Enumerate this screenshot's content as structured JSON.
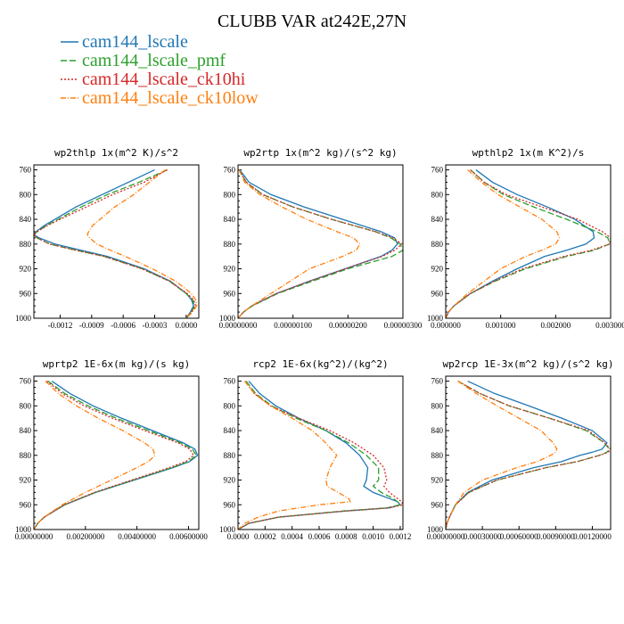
{
  "figure_title": "CLUBB VAR at242E,27N",
  "legend": [
    {
      "label": "cam144_lscale",
      "color": "#1f77b4",
      "dash": "solid"
    },
    {
      "label": "cam144_lscale_pmf",
      "color": "#2ca02c",
      "dash": "longdash"
    },
    {
      "label": "cam144_lscale_ck10hi",
      "color": "#d62728",
      "dash": "dot"
    },
    {
      "label": "cam144_lscale_ck10low",
      "color": "#ff7f0e",
      "dash": "dashdot"
    }
  ],
  "chart_data": [
    {
      "type": "line",
      "title": "wp2thlp  1x(m^2 K)/s^2",
      "xlim": [
        -0.00145,
        0.00012
      ],
      "xticks": [
        "-0.0012",
        "-0.0009",
        "-0.0006",
        "-0.0003",
        "0.0000"
      ],
      "xtick_values": [
        -0.0012,
        -0.0009,
        -0.0006,
        -0.0003,
        0.0
      ],
      "ylim": [
        1000,
        752
      ],
      "yticks": [
        "760",
        "800",
        "840",
        "880",
        "920",
        "960",
        "1000"
      ],
      "y": [
        760,
        780,
        800,
        820,
        840,
        850,
        860,
        865,
        870,
        880,
        890,
        900,
        920,
        940,
        960,
        970,
        980,
        990,
        1000
      ],
      "series": [
        {
          "name": "cam144_lscale",
          "x": [
            -0.0003,
            -0.00055,
            -0.0008,
            -0.00105,
            -0.00125,
            -0.00135,
            -0.00143,
            -0.00145,
            -0.0014,
            -0.00125,
            -0.001,
            -0.00075,
            -0.0004,
            -0.00015,
            0.0,
            5e-05,
            7e-05,
            4e-05,
            0.0
          ]
        },
        {
          "name": "cam144_lscale_pmf",
          "x": [
            -0.00018,
            -0.00045,
            -0.00075,
            -0.001,
            -0.00122,
            -0.00133,
            -0.00142,
            -0.00145,
            -0.00142,
            -0.0013,
            -0.00105,
            -0.00078,
            -0.00042,
            -0.00016,
            0.0,
            6e-05,
            8e-05,
            5e-05,
            0.0
          ]
        },
        {
          "name": "cam144_lscale_ck10hi",
          "x": [
            -0.00018,
            -0.0004,
            -0.0007,
            -0.00095,
            -0.0012,
            -0.00132,
            -0.00142,
            -0.00145,
            -0.00142,
            -0.0013,
            -0.00105,
            -0.00078,
            -0.00042,
            -0.00016,
            1e-05,
            7e-05,
            9e-05,
            5e-05,
            0.0
          ]
        },
        {
          "name": "cam144_lscale_ck10low",
          "x": [
            -0.0002,
            -0.00035,
            -0.0005,
            -0.00068,
            -0.00082,
            -0.00089,
            -0.00093,
            -0.00094,
            -0.00092,
            -0.00085,
            -0.00072,
            -0.00058,
            -0.00032,
            -0.0001,
            5e-05,
            9e-05,
            0.0001,
            6e-05,
            0.0
          ]
        }
      ]
    },
    {
      "type": "line",
      "title": "wp2rtp  1x(m^2 kg)/(s^2 kg)",
      "xlim": [
        0,
        3e-06
      ],
      "xticks": [
        "0.00000000",
        "0.00000100",
        "0.00000200",
        "0.00000300"
      ],
      "xtick_values": [
        0,
        1e-06,
        2e-06,
        3e-06
      ],
      "ylim": [
        1000,
        752
      ],
      "yticks": [
        "760",
        "800",
        "840",
        "880",
        "920",
        "960",
        "1000"
      ],
      "y": [
        760,
        780,
        800,
        820,
        840,
        860,
        870,
        880,
        890,
        900,
        920,
        940,
        960,
        980,
        990,
        1000
      ],
      "series": [
        {
          "name": "cam144_lscale",
          "x": [
            3e-08,
            2e-07,
            6e-07,
            1.2e-06,
            1.9e-06,
            2.6e-06,
            2.85e-06,
            2.9e-06,
            2.8e-06,
            2.6e-06,
            1.95e-06,
            1.3e-06,
            7e-07,
            2.5e-07,
            1e-07,
            0.0
          ]
        },
        {
          "name": "cam144_lscale_pmf",
          "x": [
            2e-08,
            1.5e-07,
            4.5e-07,
            1e-06,
            1.7e-06,
            2.5e-06,
            2.78e-06,
            2.95e-06,
            3e-06,
            2.8e-06,
            2e-06,
            1.35e-06,
            7.2e-07,
            2.6e-07,
            1e-07,
            0.0
          ]
        },
        {
          "name": "cam144_lscale_ck10hi",
          "x": [
            2e-08,
            1.5e-07,
            4.5e-07,
            1e-06,
            1.7e-06,
            2.5e-06,
            2.82e-06,
            2.98e-06,
            2.85e-06,
            2.62e-06,
            1.95e-06,
            1.3e-06,
            7e-07,
            2.5e-07,
            1e-07,
            0.0
          ]
        },
        {
          "name": "cam144_lscale_ck10low",
          "x": [
            2e-08,
            1.2e-07,
            4e-07,
            8e-07,
            1.25e-06,
            1.8e-06,
            2.1e-06,
            2.22e-06,
            2.15e-06,
            1.9e-06,
            1.3e-06,
            9.5e-07,
            6e-07,
            2.5e-07,
            1e-07,
            0.0
          ]
        }
      ]
    },
    {
      "type": "line",
      "title": "wpthlp2  1x(m K^2)/s",
      "xlim": [
        0,
        0.003
      ],
      "xticks": [
        "0.000000",
        "0.001000",
        "0.002000",
        "0.003000"
      ],
      "xtick_values": [
        0,
        0.001,
        0.002,
        0.003
      ],
      "ylim": [
        1000,
        752
      ],
      "yticks": [
        "760",
        "800",
        "840",
        "880",
        "920",
        "960",
        "1000"
      ],
      "y": [
        760,
        780,
        800,
        820,
        840,
        860,
        870,
        880,
        890,
        900,
        920,
        940,
        960,
        980,
        990,
        1000
      ],
      "series": [
        {
          "name": "cam144_lscale",
          "x": [
            0.00055,
            0.00085,
            0.0013,
            0.00185,
            0.00235,
            0.00268,
            0.0027,
            0.00255,
            0.0022,
            0.0018,
            0.0013,
            0.00085,
            0.00045,
            0.00015,
            5e-05,
            0.0
          ]
        },
        {
          "name": "cam144_lscale_pmf",
          "x": [
            0.00045,
            0.0007,
            0.00105,
            0.0016,
            0.0022,
            0.00275,
            0.00295,
            0.00298,
            0.0027,
            0.0022,
            0.00145,
            0.0009,
            0.00045,
            0.00015,
            5e-05,
            0.0
          ]
        },
        {
          "name": "cam144_lscale_ck10hi",
          "x": [
            0.00045,
            0.0007,
            0.0011,
            0.00175,
            0.0024,
            0.00285,
            0.003,
            0.00298,
            0.00265,
            0.00215,
            0.0014,
            0.00088,
            0.00045,
            0.00015,
            5e-05,
            0.0
          ]
        },
        {
          "name": "cam144_lscale_ck10low",
          "x": [
            0.0004,
            0.00065,
            0.00095,
            0.00135,
            0.00175,
            0.00202,
            0.00207,
            0.002,
            0.00175,
            0.00145,
            0.001,
            0.0007,
            0.0004,
            0.00015,
            5e-05,
            0.0
          ]
        }
      ]
    },
    {
      "type": "line",
      "title": "wprtp2  1E-6x(m kg)/(s kg)",
      "xlim": [
        0,
        0.0064
      ],
      "xticks": [
        "0.00000000",
        "0.00200000",
        "0.00400000",
        "0.00600000"
      ],
      "xtick_values": [
        0,
        0.002,
        0.004,
        0.006
      ],
      "ylim": [
        1000,
        752
      ],
      "yticks": [
        "760",
        "800",
        "840",
        "880",
        "920",
        "960",
        "1000"
      ],
      "y": [
        760,
        780,
        800,
        820,
        840,
        860,
        870,
        880,
        890,
        900,
        920,
        940,
        960,
        980,
        990,
        1000
      ],
      "series": [
        {
          "name": "cam144_lscale",
          "x": [
            0.0007,
            0.0014,
            0.0023,
            0.0034,
            0.0046,
            0.0058,
            0.00625,
            0.00635,
            0.00605,
            0.0054,
            0.0039,
            0.0024,
            0.0012,
            0.0004,
            0.00015,
            0.0
          ]
        },
        {
          "name": "cam144_lscale_pmf",
          "x": [
            0.00055,
            0.0012,
            0.0021,
            0.0032,
            0.00445,
            0.0057,
            0.00615,
            0.0063,
            0.006,
            0.00535,
            0.00385,
            0.00238,
            0.00118,
            0.0004,
            0.00015,
            0.0
          ]
        },
        {
          "name": "cam144_lscale_ck10hi",
          "x": [
            0.0005,
            0.0011,
            0.00195,
            0.00305,
            0.0043,
            0.0056,
            0.00605,
            0.0062,
            0.0059,
            0.00525,
            0.0038,
            0.00235,
            0.00118,
            0.0004,
            0.00015,
            0.0
          ]
        },
        {
          "name": "cam144_lscale_ck10low",
          "x": [
            0.00045,
            0.00095,
            0.00165,
            0.0025,
            0.00345,
            0.0043,
            0.00462,
            0.0047,
            0.00445,
            0.004,
            0.003,
            0.002,
            0.0011,
            0.0004,
            0.00015,
            0.0
          ]
        }
      ]
    },
    {
      "type": "line",
      "title": "rcp2  1E-6x(kg^2)/(kg^2)",
      "xlim": [
        0,
        0.00122
      ],
      "xticks": [
        "0.0000",
        "0.0002",
        "0.0004",
        "0.0006",
        "0.0008",
        "0.0010",
        "0.0012"
      ],
      "xtick_values": [
        0,
        0.0002,
        0.0004,
        0.0006,
        0.0008,
        0.001,
        0.0012
      ],
      "ylim": [
        1000,
        752
      ],
      "yticks": [
        "760",
        "800",
        "840",
        "880",
        "920",
        "960",
        "1000"
      ],
      "y": [
        760,
        780,
        800,
        820,
        840,
        860,
        880,
        900,
        920,
        930,
        940,
        950,
        955,
        960,
        965,
        970,
        980,
        990,
        1000
      ],
      "series": [
        {
          "name": "cam144_lscale",
          "x": [
            8e-05,
            0.00016,
            0.00028,
            0.00045,
            0.00065,
            0.0008,
            0.0009,
            0.00096,
            0.00095,
            0.00093,
            0.001,
            0.00112,
            0.00118,
            0.0012,
            0.00112,
            0.0008,
            0.0003,
            8e-05,
            0.0
          ]
        },
        {
          "name": "cam144_lscale_pmf",
          "x": [
            6e-05,
            0.00013,
            0.00025,
            0.00043,
            0.00065,
            0.00082,
            0.00095,
            0.00104,
            0.00104,
            0.001,
            0.00106,
            0.00115,
            0.00118,
            0.0012,
            0.0011,
            0.00078,
            0.0003,
            8e-05,
            0.0
          ]
        },
        {
          "name": "cam144_lscale_ck10hi",
          "x": [
            5e-05,
            0.00012,
            0.00024,
            0.00045,
            0.00068,
            0.00086,
            0.001,
            0.00108,
            0.0011,
            0.00108,
            0.00112,
            0.00118,
            0.00121,
            0.00122,
            0.00112,
            0.0008,
            0.0003,
            8e-05,
            0.0
          ]
        },
        {
          "name": "cam144_lscale_ck10low",
          "x": [
            5e-05,
            0.00012,
            0.00024,
            0.0004,
            0.00055,
            0.00065,
            0.00073,
            0.00068,
            0.00065,
            0.00066,
            0.00074,
            0.00082,
            0.00083,
            0.0006,
            0.00045,
            0.0003,
            0.00015,
            5e-05,
            0.0
          ]
        }
      ]
    },
    {
      "type": "line",
      "title": "wp2rcp  1E-3x(m^2 kg)/(s^2 kg)",
      "xlim": [
        0,
        0.00135
      ],
      "xticks": [
        "0.00000000",
        "0.00030000",
        "0.00060000",
        "0.00090000",
        "0.00120000"
      ],
      "xtick_values": [
        0,
        0.0003,
        0.0006,
        0.0009,
        0.0012
      ],
      "ylim": [
        1000,
        752
      ],
      "yticks": [
        "760",
        "800",
        "840",
        "880",
        "920",
        "960",
        "1000"
      ],
      "y": [
        760,
        780,
        800,
        820,
        840,
        860,
        870,
        875,
        880,
        890,
        900,
        920,
        940,
        960,
        980,
        990,
        1000
      ],
      "series": [
        {
          "name": "cam144_lscale",
          "x": [
            0.00018,
            0.0004,
            0.00068,
            0.00095,
            0.0012,
            0.00132,
            0.00128,
            0.0012,
            0.0011,
            0.00095,
            0.00072,
            0.00038,
            0.00018,
            8e-05,
            3e-05,
            1e-05,
            0.0
          ]
        },
        {
          "name": "cam144_lscale_pmf",
          "x": [
            0.0001,
            0.00028,
            0.00052,
            0.00085,
            0.00115,
            0.0013,
            0.00134,
            0.00132,
            0.00126,
            0.00108,
            0.00082,
            0.00042,
            0.00019,
            8e-05,
            3e-05,
            1e-05,
            0.0
          ]
        },
        {
          "name": "cam144_lscale_ck10hi",
          "x": [
            0.0001,
            0.00028,
            0.00052,
            0.00085,
            0.00117,
            0.0013,
            0.00135,
            0.00133,
            0.00126,
            0.00108,
            0.00082,
            0.00042,
            0.00019,
            8e-05,
            3e-05,
            1e-05,
            0.0
          ]
        },
        {
          "name": "cam144_lscale_ck10low",
          "x": [
            0.0001,
            0.00025,
            0.00042,
            0.0006,
            0.00078,
            0.00088,
            0.00091,
            0.0009,
            0.00086,
            0.00075,
            0.00058,
            0.0003,
            0.00015,
            8e-05,
            3e-05,
            1e-05,
            0.0
          ]
        }
      ]
    }
  ]
}
